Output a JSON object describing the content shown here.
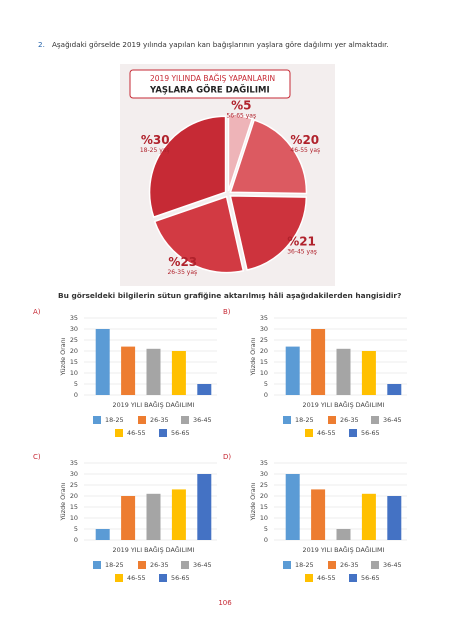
{
  "question": {
    "number": "2.",
    "text": "Aşağıdaki görselde 2019 yılında yapılan kan bağışlarının yaşlara göre dağılımı yer almaktadır.",
    "prompt": "Bu görseldeki bilgilerin sütun grafiğine aktarılmış hâli aşağıdakilerden hangisidir?"
  },
  "page_number": "106",
  "chart_data": [
    {
      "type": "pie",
      "title": [
        "2019 YILINDA BAĞIŞ YAPANLARIN",
        "YAŞLARA GÖRE DAĞILIMI"
      ],
      "categories": [
        "18-25 yaş",
        "26-35 yaş",
        "36-45 yaş",
        "46-55 yaş",
        "56-65 yaş"
      ],
      "values": [
        30,
        23,
        21,
        20,
        5
      ],
      "value_labels": [
        "%30",
        "%23",
        "%21",
        "%20",
        "%5"
      ],
      "colors": [
        "#c62a35",
        "#d23a43",
        "#cd333d",
        "#dc5a61",
        "#eeb4b8"
      ]
    },
    {
      "type": "bar",
      "option": "A)",
      "ylabel": "Yüzde Oranı",
      "xlabel": "2019 YILI BAĞIŞ DAĞILIMI",
      "categories": [
        "18-25",
        "26-35",
        "36-45",
        "46-55",
        "56-65"
      ],
      "values": [
        30,
        22,
        21,
        20,
        5
      ],
      "colors": [
        "#5b9bd5",
        "#ed7d31",
        "#a5a5a5",
        "#ffc000",
        "#4472c4"
      ],
      "ylim": [
        0,
        35
      ],
      "yticks": [
        0,
        5,
        10,
        15,
        20,
        25,
        30,
        35
      ],
      "grid": true
    },
    {
      "type": "bar",
      "option": "B)",
      "ylabel": "Yüzde Oranı",
      "xlabel": "2019 YILI BAĞIŞ DAĞILIMI",
      "categories": [
        "18-25",
        "26-35",
        "36-45",
        "46-55",
        "56-65"
      ],
      "values": [
        22,
        30,
        21,
        20,
        5
      ],
      "colors": [
        "#5b9bd5",
        "#ed7d31",
        "#a5a5a5",
        "#ffc000",
        "#4472c4"
      ],
      "ylim": [
        0,
        35
      ],
      "yticks": [
        0,
        5,
        10,
        15,
        20,
        25,
        30,
        35
      ],
      "grid": true
    },
    {
      "type": "bar",
      "option": "C)",
      "ylabel": "Yüzde Oranı",
      "xlabel": "2019 YILI BAĞIŞ DAĞILIMI",
      "categories": [
        "18-25",
        "26-35",
        "36-45",
        "46-55",
        "56-65"
      ],
      "values": [
        5,
        20,
        21,
        23,
        30
      ],
      "colors": [
        "#5b9bd5",
        "#ed7d31",
        "#a5a5a5",
        "#ffc000",
        "#4472c4"
      ],
      "ylim": [
        0,
        35
      ],
      "yticks": [
        0,
        5,
        10,
        15,
        20,
        25,
        30,
        35
      ],
      "grid": true
    },
    {
      "type": "bar",
      "option": "D)",
      "ylabel": "Yüzde Oranı",
      "xlabel": "2019 YILI BAĞIŞ DAĞILIMI",
      "categories": [
        "18-25",
        "26-35",
        "36-45",
        "46-55",
        "56-65"
      ],
      "values": [
        30,
        23,
        5,
        21,
        20
      ],
      "colors": [
        "#5b9bd5",
        "#ed7d31",
        "#a5a5a5",
        "#ffc000",
        "#4472c4"
      ],
      "ylim": [
        0,
        35
      ],
      "yticks": [
        0,
        5,
        10,
        15,
        20,
        25,
        30,
        35
      ],
      "grid": true
    }
  ]
}
